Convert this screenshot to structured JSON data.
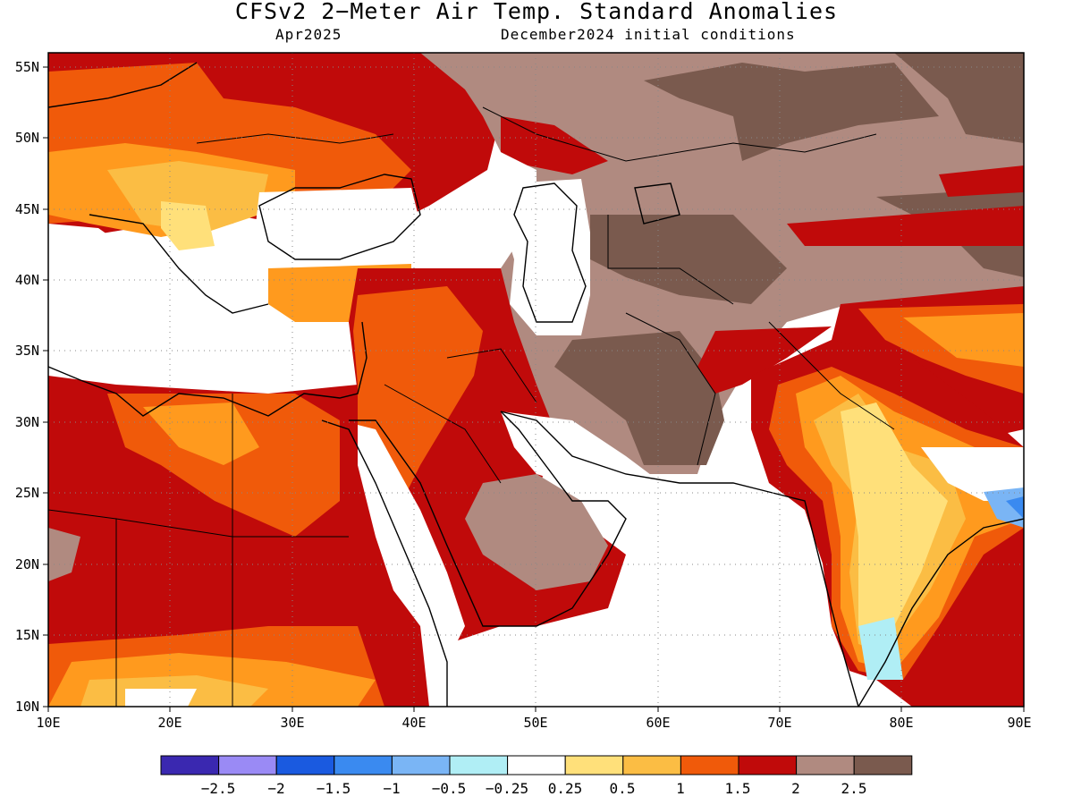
{
  "title": "CFSv2 2−Meter Air Temp. Standard Anomalies",
  "subtitle_left": "Apr2025",
  "subtitle_right": "December2024 initial conditions",
  "axes": {
    "lon_labels": [
      "10E",
      "20E",
      "30E",
      "40E",
      "50E",
      "60E",
      "70E",
      "80E",
      "90E"
    ],
    "lat_labels": [
      "55N",
      "50N",
      "45N",
      "40N",
      "35N",
      "30N",
      "25N",
      "20N",
      "15N",
      "10N"
    ],
    "lon_range": [
      10,
      90
    ],
    "lat_range": [
      10,
      56
    ],
    "grid": "dotted"
  },
  "colors": {
    "brown_dark": "#7a5a4e",
    "brown_light": "#b08a80",
    "red_dark": "#c00a0a",
    "red_orange": "#f05a0a",
    "orange": "#ff9a1e",
    "orange_light": "#fbbd44",
    "yellow": "#ffe07a",
    "white": "#ffffff",
    "cyan_light": "#b0eef5"
  },
  "colorbar": {
    "colors": [
      "#3a28b0",
      "#9a8af5",
      "#1a5ae0",
      "#3a8af0",
      "#7ab5f5",
      "#b0eef5",
      "#ffffff",
      "#ffe07a",
      "#fbbd44",
      "#f05a0a",
      "#c00a0a",
      "#b08a80",
      "#7a5a4e"
    ],
    "labels": [
      "−2.5",
      "−2",
      "−1.5",
      "−1",
      "−0.5",
      "−0.25",
      "0.25",
      "0.5",
      "1",
      "1.5",
      "2",
      "2.5"
    ]
  }
}
